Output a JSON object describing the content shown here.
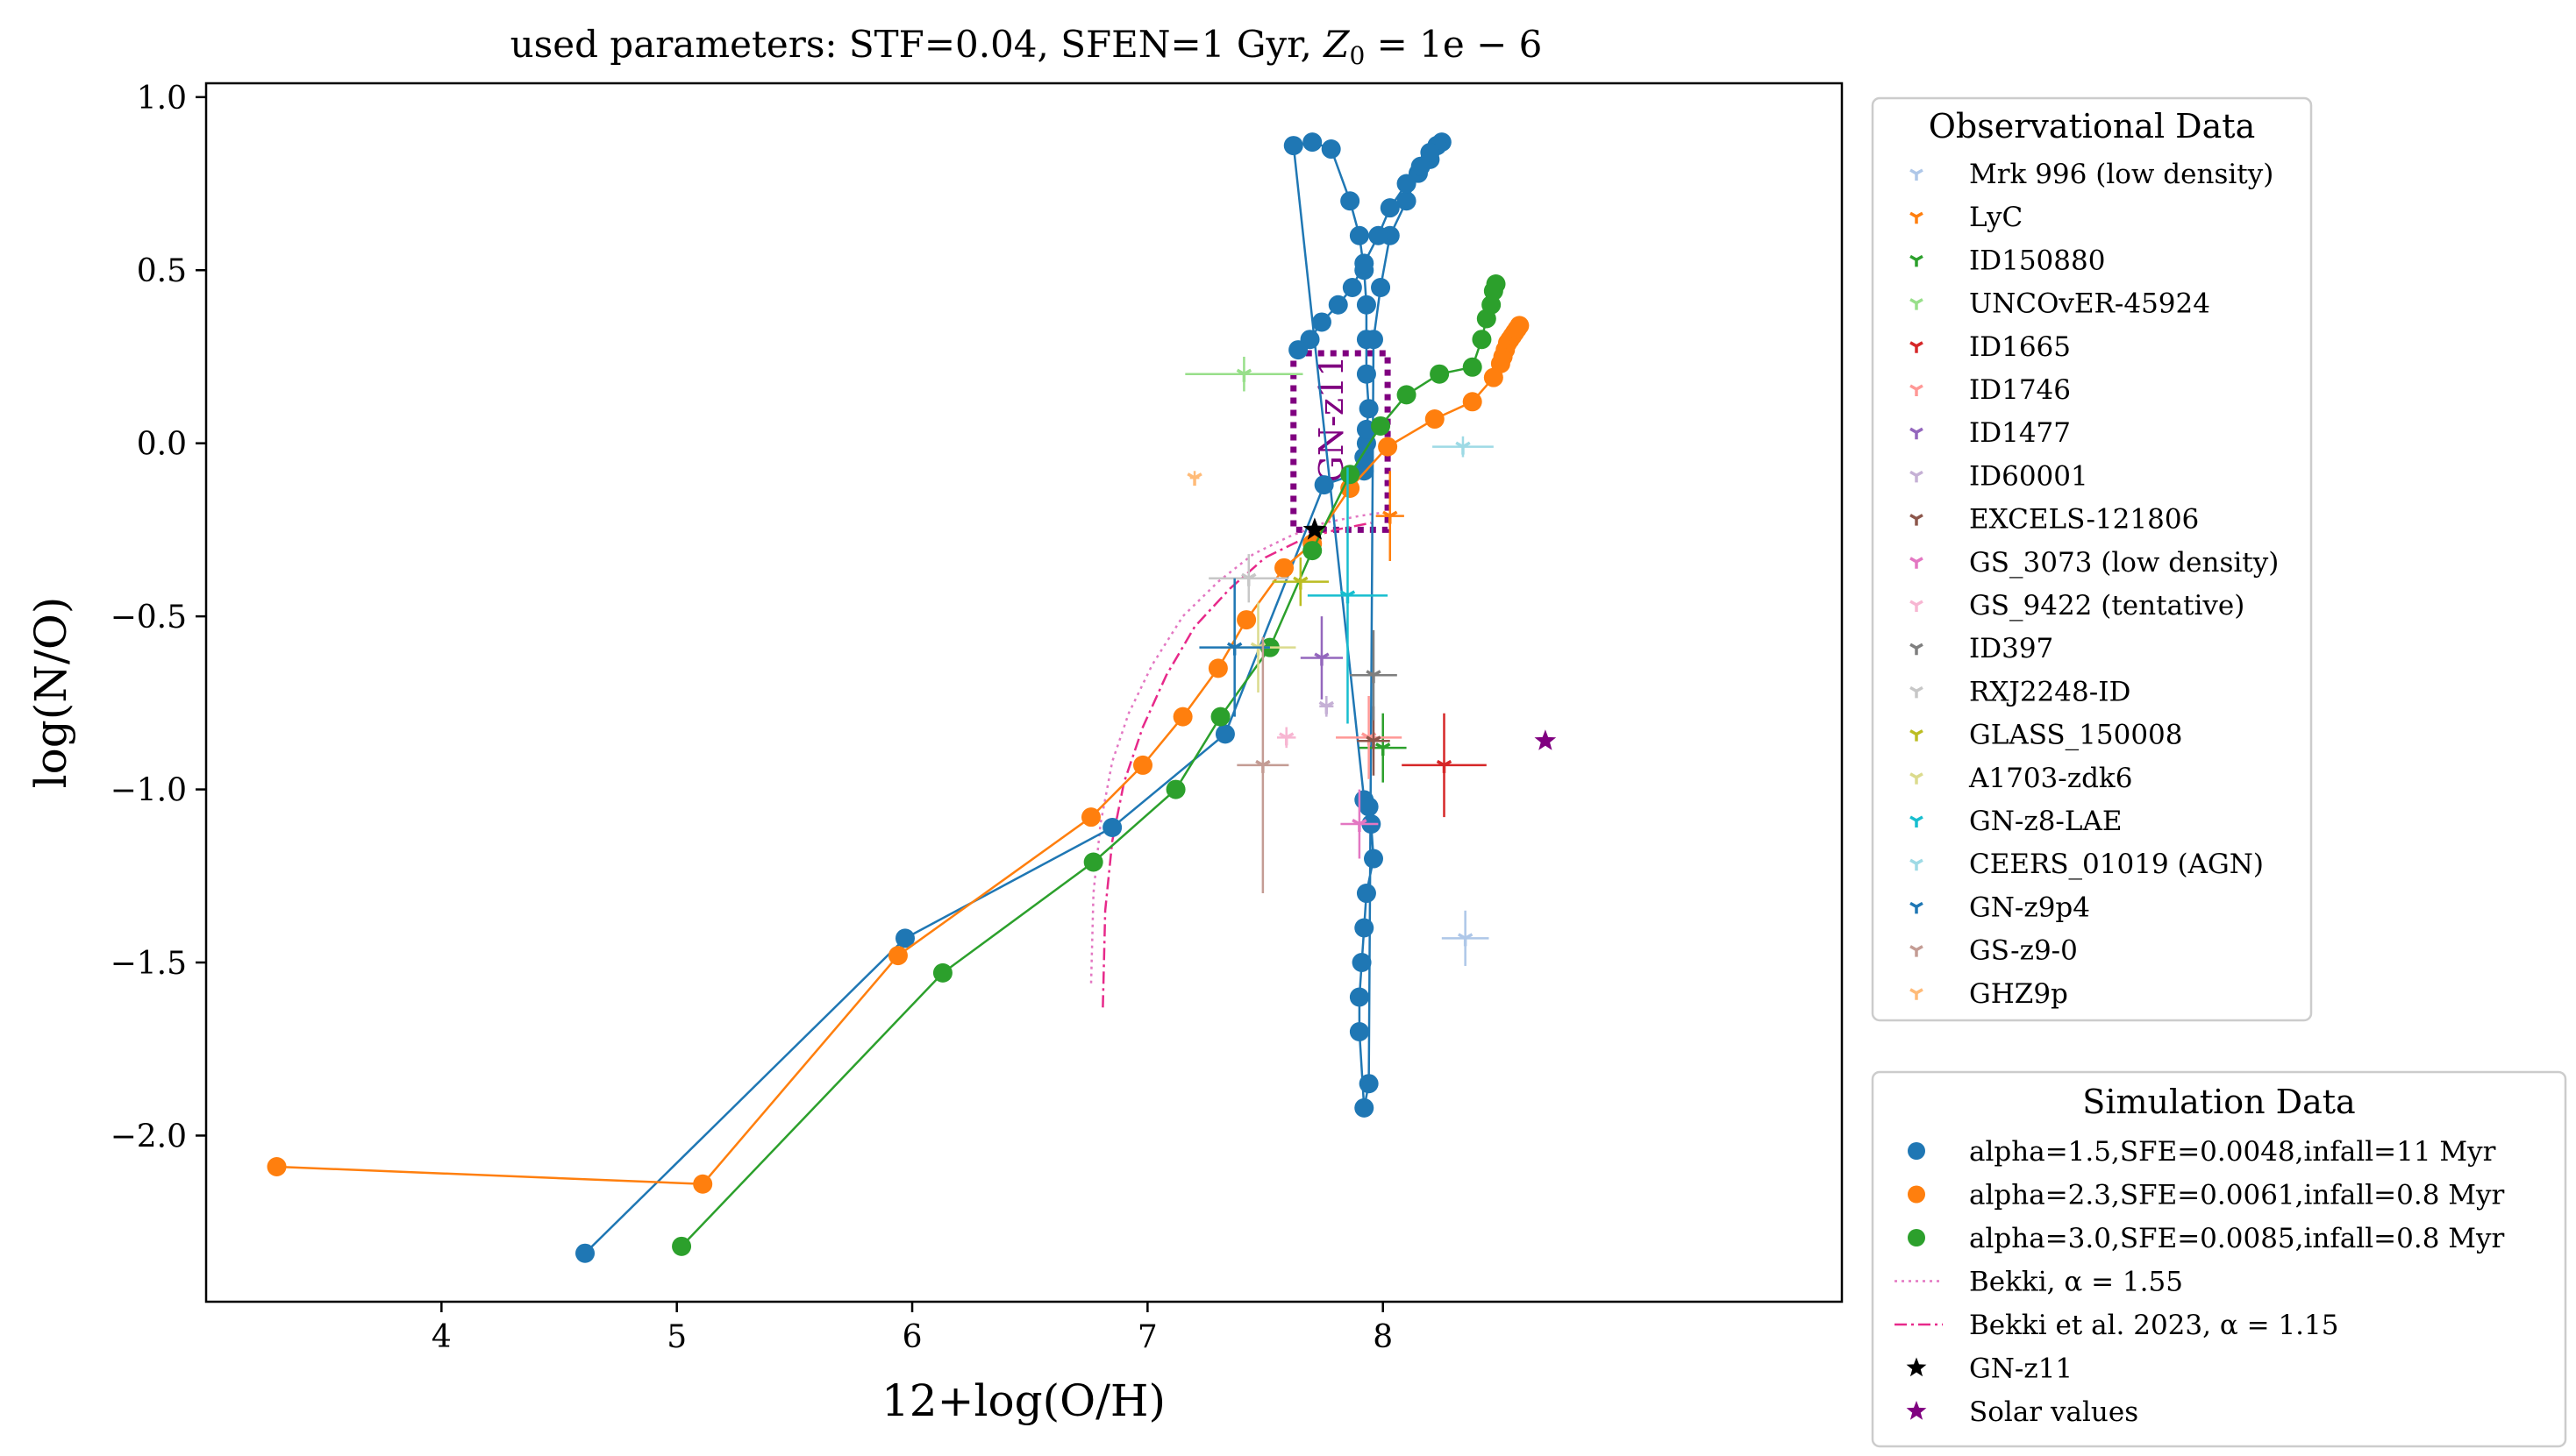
{
  "chart_data": {
    "type": "scatter",
    "title": "used parameters: STF=0.04, SFEN=1 Gyr, ",
    "title_math": "Z",
    "title_math_sub": "0",
    "title_math_rest": " = 1e − 6",
    "xlabel": "12+log(O/H)",
    "ylabel": "log(N/O)",
    "xlim": [
      3.0,
      9.95
    ],
    "ylim": [
      -2.48,
      1.04
    ],
    "x_ticks": [
      4,
      5,
      6,
      7,
      8
    ],
    "x_tick_labels": [
      "4",
      "5",
      "6",
      "7",
      "8"
    ],
    "y_ticks": [
      1.0,
      0.5,
      0.0,
      -0.5,
      -1.0,
      -1.5,
      -2.0
    ],
    "y_tick_labels": [
      "1.0",
      "0.5",
      "0.0",
      "−0.5",
      "−1.0",
      "−1.5",
      "−2.0"
    ],
    "grid": false,
    "legend_obs_title": "Observational Data",
    "legend_sim_title": "Simulation Data",
    "legend_obs_position": "upper-right-outside",
    "legend_sim_position": "lower-right-outside",
    "box_label": "GN-z11",
    "box_color": "#800080",
    "box": {
      "x": [
        7.62,
        8.02
      ],
      "y": [
        -0.25,
        0.26
      ]
    },
    "observations": [
      {
        "name": "Mrk 996 (low density)",
        "color": "#aec7e8",
        "x": 8.35,
        "y": -1.43,
        "xerr": 0.1,
        "yerr": 0.08
      },
      {
        "name": "LyC",
        "color": "#ff7f0e",
        "x": 8.03,
        "y": -0.21,
        "xerr": 0.06,
        "yerr": 0.13
      },
      {
        "name": "ID150880",
        "color": "#2ca02c",
        "x": 8.0,
        "y": -0.88,
        "xerr": 0.1,
        "yerr": 0.1
      },
      {
        "name": "UNCOvER-45924",
        "color": "#98df8a",
        "x": 7.41,
        "y": 0.2,
        "xerr": 0.25,
        "yerr": 0.05
      },
      {
        "name": "ID1665",
        "color": "#d62728",
        "x": 8.26,
        "y": -0.93,
        "xerr": 0.18,
        "yerr": 0.15
      },
      {
        "name": "ID1746",
        "color": "#ff9896",
        "x": 7.94,
        "y": -0.85,
        "xerr": 0.14,
        "yerr": 0.12
      },
      {
        "name": "ID1477",
        "color": "#9467bd",
        "x": 7.74,
        "y": -0.62,
        "xerr": 0.09,
        "yerr": 0.12
      },
      {
        "name": "ID60001",
        "color": "#c5b0d5",
        "x": 7.76,
        "y": -0.76,
        "xerr": 0.03,
        "yerr": 0.03
      },
      {
        "name": "EXCELS-121806",
        "color": "#8c564b",
        "x": 7.96,
        "y": -0.86,
        "xerr": 0.07,
        "yerr": 0.1
      },
      {
        "name": "GS_3073 (low density)",
        "color": "#e377c2",
        "x": 7.9,
        "y": -1.1,
        "xerr": 0.08,
        "yerr": 0.1
      },
      {
        "name": "GS_9422 (tentative)",
        "color": "#f7b6d2",
        "x": 7.59,
        "y": -0.85,
        "xerr": 0.04,
        "yerr": 0.03
      },
      {
        "name": "ID397",
        "color": "#7f7f7f",
        "x": 7.96,
        "y": -0.67,
        "xerr": 0.1,
        "yerr": 0.13
      },
      {
        "name": "RXJ2248-ID",
        "color": "#c7c7c7",
        "x": 7.43,
        "y": -0.39,
        "xerr": 0.17,
        "yerr": 0.07
      },
      {
        "name": "GLASS_150008",
        "color": "#bcbd22",
        "x": 7.65,
        "y": -0.4,
        "xerr": 0.12,
        "yerr": 0.07
      },
      {
        "name": "A1703-zdk6",
        "color": "#dbdb8d",
        "x": 7.47,
        "y": -0.59,
        "xerr": 0.16,
        "yerr": 0.13
      },
      {
        "name": "GN-z8-LAE",
        "color": "#17becf",
        "x": 7.85,
        "y": -0.44,
        "xerr": 0.17,
        "yerr": 0.37
      },
      {
        "name": "CEERS_01019 (AGN)",
        "color": "#9edae5",
        "x": 8.34,
        "y": -0.01,
        "xerr": 0.13,
        "yerr": 0.03
      },
      {
        "name": "GN-z9p4",
        "color": "#1f77b4",
        "x": 7.37,
        "y": -0.59,
        "xerr": 0.15,
        "yerr": 0.2
      },
      {
        "name": "GS-z9-0",
        "color": "#c49c94",
        "x": 7.49,
        "y": -0.93,
        "xerr": 0.11,
        "yerr": 0.37
      },
      {
        "name": "GHZ9p",
        "color": "#ffbb78",
        "x": 7.2,
        "y": -0.1,
        "xerr": 0.02,
        "yerr": 0.02
      }
    ],
    "series": [
      {
        "name": "alpha=1.5,SFE=0.0048,infall=11 Myr",
        "color": "#1f77b4",
        "x": [
          4.61,
          5.97,
          6.85,
          7.33,
          7.75,
          7.92,
          7.92,
          7.93,
          7.93,
          7.94,
          7.93,
          7.93,
          7.93,
          7.92,
          7.9,
          7.86,
          7.78,
          7.7,
          7.62,
          7.92,
          7.94,
          7.95,
          7.96,
          7.93,
          7.92,
          7.91,
          7.9,
          7.9,
          7.92,
          7.94,
          7.96,
          7.99,
          8.03,
          8.1,
          8.15,
          8.2,
          8.23,
          8.25,
          8.23,
          8.2,
          8.16,
          8.1,
          8.03,
          7.98,
          7.92,
          7.87,
          7.81,
          7.74,
          7.69,
          7.64
        ],
        "y": [
          -2.34,
          -1.43,
          -1.11,
          -0.84,
          -0.12,
          -0.08,
          -0.04,
          0.0,
          0.04,
          0.1,
          0.2,
          0.3,
          0.4,
          0.5,
          0.6,
          0.7,
          0.85,
          0.87,
          0.86,
          -1.03,
          -1.05,
          -1.1,
          -1.2,
          -1.3,
          -1.4,
          -1.5,
          -1.6,
          -1.7,
          -1.92,
          -1.85,
          0.3,
          0.45,
          0.6,
          0.7,
          0.78,
          0.82,
          0.86,
          0.87,
          0.86,
          0.84,
          0.8,
          0.75,
          0.68,
          0.6,
          0.52,
          0.45,
          0.4,
          0.35,
          0.3,
          0.27
        ]
      },
      {
        "name": "alpha=2.3,SFE=0.0061,infall=0.8 Myr",
        "color": "#ff7f0e",
        "x": [
          3.3,
          5.11,
          5.94,
          6.76,
          6.98,
          7.15,
          7.3,
          7.42,
          7.58,
          7.7,
          7.86,
          8.02,
          8.22,
          8.38,
          8.47,
          8.5,
          8.51,
          8.52,
          8.53,
          8.54,
          8.55,
          8.56,
          8.57,
          8.58
        ],
        "y": [
          -2.09,
          -2.14,
          -1.48,
          -1.08,
          -0.93,
          -0.79,
          -0.65,
          -0.51,
          -0.36,
          -0.29,
          -0.13,
          -0.01,
          0.07,
          0.12,
          0.19,
          0.23,
          0.25,
          0.27,
          0.29,
          0.3,
          0.31,
          0.32,
          0.33,
          0.34
        ]
      },
      {
        "name": "alpha=3.0,SFE=0.0085,infall=0.8 Myr",
        "color": "#2ca02c",
        "x": [
          5.02,
          6.13,
          6.77,
          7.12,
          7.31,
          7.52,
          7.7,
          7.86,
          7.99,
          8.1,
          8.24,
          8.38,
          8.42,
          8.44,
          8.46,
          8.47,
          8.48
        ],
        "y": [
          -2.32,
          -1.53,
          -1.21,
          -1.0,
          -0.79,
          -0.59,
          -0.31,
          -0.09,
          0.05,
          0.14,
          0.2,
          0.22,
          0.3,
          0.36,
          0.4,
          0.44,
          0.46
        ]
      },
      {
        "name": "Bekki, α = 1.55",
        "color": "#e377c2",
        "style": "dotted",
        "x": [
          6.76,
          6.77,
          6.8,
          6.85,
          6.92,
          7.02,
          7.15,
          7.3,
          7.45,
          7.6,
          7.75,
          7.9,
          8.0
        ],
        "y": [
          -1.56,
          -1.3,
          -1.1,
          -0.92,
          -0.78,
          -0.64,
          -0.5,
          -0.4,
          -0.32,
          -0.27,
          -0.23,
          -0.21,
          -0.2
        ]
      },
      {
        "name": "Bekki et al. 2023, α = 1.15",
        "color": "#e7298a",
        "style": "dashdot",
        "x": [
          6.81,
          6.82,
          6.85,
          6.9,
          6.98,
          7.08,
          7.2,
          7.35,
          7.5,
          7.65,
          7.8,
          7.95
        ],
        "y": [
          -1.63,
          -1.35,
          -1.15,
          -0.98,
          -0.82,
          -0.67,
          -0.53,
          -0.42,
          -0.33,
          -0.28,
          -0.25,
          -0.23
        ]
      }
    ],
    "gnz11": {
      "name": "GN-z11",
      "x": 7.71,
      "y": -0.25,
      "color": "#000000"
    },
    "solar": {
      "name": "Solar values",
      "x": 8.69,
      "y": -0.86,
      "color": "#800080"
    }
  }
}
